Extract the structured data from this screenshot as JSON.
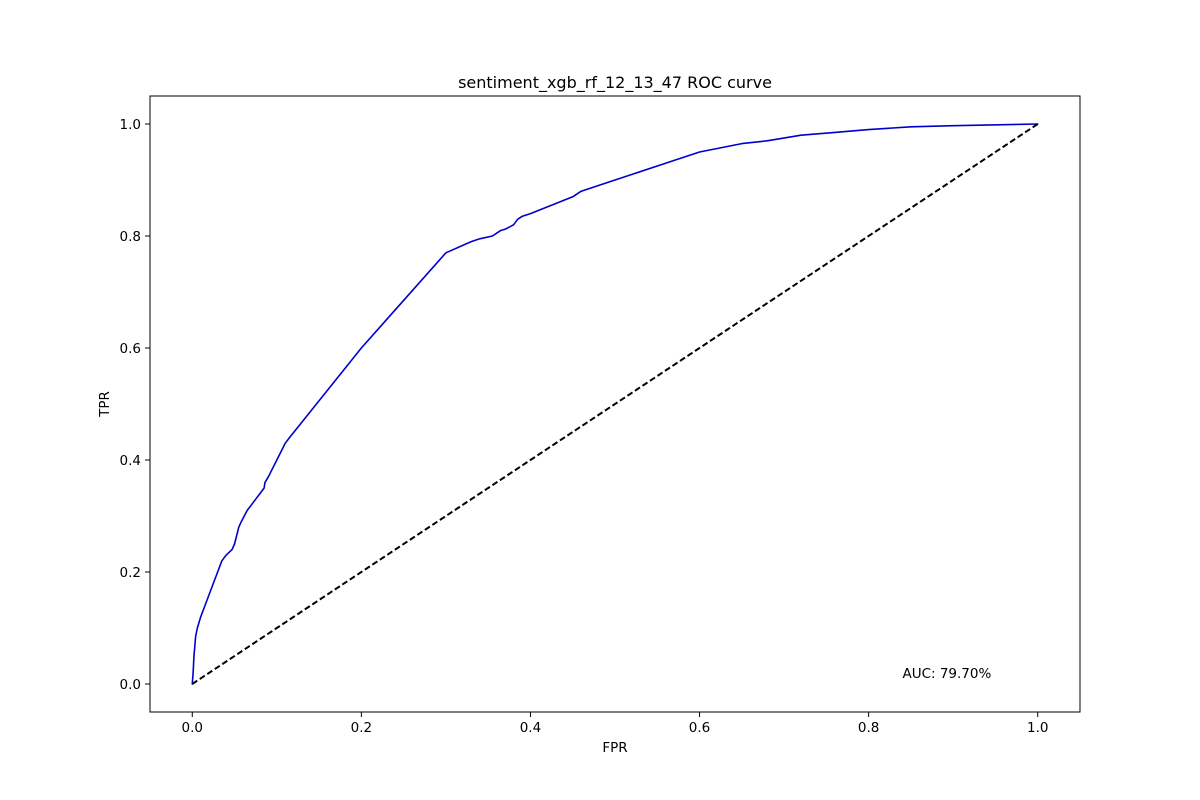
{
  "chart_data": {
    "type": "line",
    "title": "sentiment_xgb_rf_12_13_47 ROC curve",
    "xlabel": "FPR",
    "ylabel": "TPR",
    "xlim": [
      -0.05,
      1.05
    ],
    "ylim": [
      -0.05,
      1.05
    ],
    "xticks": [
      0.0,
      0.2,
      0.4,
      0.6,
      0.8,
      1.0
    ],
    "yticks": [
      0.0,
      0.2,
      0.4,
      0.6,
      0.8,
      1.0
    ],
    "xtick_labels": [
      "0.0",
      "0.2",
      "0.4",
      "0.6",
      "0.8",
      "1.0"
    ],
    "ytick_labels": [
      "0.0",
      "0.2",
      "0.4",
      "0.6",
      "0.8",
      "1.0"
    ],
    "grid": false,
    "series": [
      {
        "color": "#0000cc",
        "style": "solid",
        "x": [
          0.0,
          0.001,
          0.002,
          0.004,
          0.006,
          0.01,
          0.015,
          0.02,
          0.03,
          0.035,
          0.04,
          0.047,
          0.05,
          0.055,
          0.058,
          0.065,
          0.07,
          0.075,
          0.08,
          0.085,
          0.086,
          0.09,
          0.1,
          0.11,
          0.115,
          0.2,
          0.3,
          0.33,
          0.34,
          0.355,
          0.36,
          0.365,
          0.37,
          0.38,
          0.385,
          0.39,
          0.4,
          0.45,
          0.46,
          0.5,
          0.55,
          0.6,
          0.65,
          0.68,
          0.72,
          0.76,
          0.8,
          0.85,
          0.9,
          1.0
        ],
        "y": [
          0.0,
          0.02,
          0.05,
          0.085,
          0.1,
          0.12,
          0.14,
          0.16,
          0.2,
          0.22,
          0.23,
          0.24,
          0.25,
          0.28,
          0.29,
          0.31,
          0.32,
          0.33,
          0.34,
          0.35,
          0.36,
          0.37,
          0.4,
          0.43,
          0.44,
          0.6,
          0.77,
          0.79,
          0.795,
          0.8,
          0.805,
          0.81,
          0.812,
          0.82,
          0.83,
          0.835,
          0.84,
          0.87,
          0.88,
          0.9,
          0.925,
          0.95,
          0.965,
          0.97,
          0.98,
          0.985,
          0.99,
          0.995,
          0.997,
          1.0
        ]
      },
      {
        "color": "#000000",
        "style": "dashed",
        "x": [
          0.0,
          1.0
        ],
        "y": [
          0.0,
          1.0
        ]
      }
    ],
    "annotations": [
      {
        "text": "AUC: 79.70%",
        "x": 0.84,
        "y": 0.02
      }
    ]
  }
}
